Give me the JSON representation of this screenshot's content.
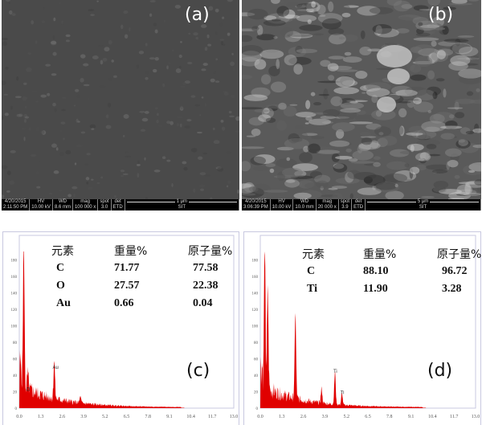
{
  "panels": {
    "a": {
      "label": "(a)",
      "info": {
        "date": "4/20/2015",
        "time": "2:11:50 PM",
        "hv_h": "HV",
        "hv": "10.00 kV",
        "wd_h": "WD",
        "wd": "8.6 mm",
        "mag_h": "mag",
        "mag": "100 000 x",
        "spot_h": "spot",
        "spot": "3.0",
        "det_h": "det",
        "det": "ETD",
        "scale": "1 μm",
        "inst": "SIT"
      }
    },
    "b": {
      "label": "(b)",
      "info": {
        "date": "4/20/2015",
        "time": "3:06:39 PM",
        "hv_h": "HV",
        "hv": "10.00 kV",
        "wd_h": "WD",
        "wd": "10.0 mm",
        "mag_h": "mag",
        "mag": "20 000 x",
        "spot_h": "spot",
        "spot": "3.9",
        "det_h": "det",
        "det": "ETD",
        "scale": "5 μm",
        "inst": "SIT"
      }
    },
    "c": {
      "label": "(c)",
      "table": {
        "headers": [
          "元素",
          "重量%",
          "原子量%"
        ],
        "rows": [
          [
            "C",
            "71.77",
            "77.58"
          ],
          [
            "O",
            "27.57",
            "22.38"
          ],
          [
            "Au",
            "0.66",
            "0.04"
          ]
        ]
      }
    },
    "d": {
      "label": "(d)",
      "table": {
        "headers": [
          "元素",
          "重量%",
          "原子量%"
        ],
        "rows": [
          [
            "C",
            "88.10",
            "96.72"
          ],
          [
            "Ti",
            "11.90",
            "3.28"
          ]
        ]
      }
    }
  },
  "chart_data": [
    {
      "type": "area",
      "panel": "c",
      "color": "#e00000",
      "xticks": [
        "0.0",
        "1.3",
        "2.6",
        "3.9",
        "5.2",
        "6.5",
        "7.8",
        "9.1",
        "10.4",
        "11.7",
        "13.0"
      ],
      "yticks": [
        "0",
        "20",
        "40",
        "60",
        "80",
        "100",
        "120",
        "140",
        "160",
        "180"
      ],
      "xlim": [
        0,
        13
      ],
      "ylim": [
        0,
        190
      ],
      "peaks": [
        {
          "x": 0.27,
          "y": 180,
          "label": ""
        },
        {
          "x": 0.52,
          "y": 18,
          "label": "O"
        },
        {
          "x": 2.12,
          "y": 45,
          "label": "Au"
        },
        {
          "x": 3.7,
          "y": 8,
          "label": ""
        }
      ]
    },
    {
      "type": "area",
      "panel": "d",
      "color": "#e00000",
      "xticks": [
        "0.0",
        "1.3",
        "2.6",
        "3.9",
        "5.2",
        "6.5",
        "7.8",
        "9.1",
        "10.4",
        "11.7",
        "13.0"
      ],
      "yticks": [
        "0",
        "20",
        "40",
        "60",
        "80",
        "100",
        "120",
        "140",
        "160",
        "180"
      ],
      "xlim": [
        0,
        13
      ],
      "ylim": [
        0,
        190
      ],
      "peaks": [
        {
          "x": 0.27,
          "y": 175,
          "label": ""
        },
        {
          "x": 0.45,
          "y": 120,
          "label": ""
        },
        {
          "x": 2.12,
          "y": 105,
          "label": ""
        },
        {
          "x": 3.7,
          "y": 18,
          "label": ""
        },
        {
          "x": 4.51,
          "y": 40,
          "label": "Ti"
        },
        {
          "x": 4.93,
          "y": 14,
          "label": "Ti"
        }
      ]
    }
  ]
}
